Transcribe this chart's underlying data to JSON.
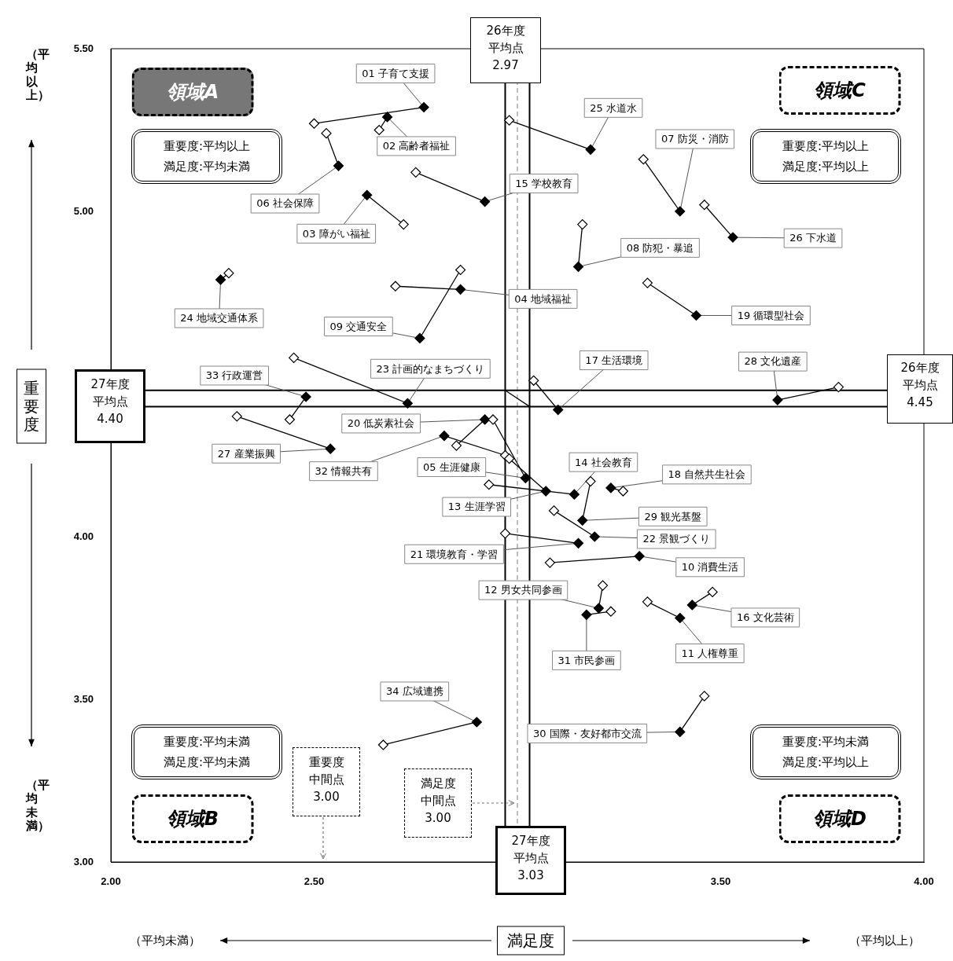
{
  "chart_data": {
    "type": "line",
    "xlabel": "満足度",
    "ylabel": "重要度",
    "marker": "diamond",
    "xlim": [
      2,
      4
    ],
    "ylim": [
      3,
      5.5
    ],
    "xticks": [
      {
        "value": 2,
        "label": "2.00"
      },
      {
        "value": 2.5,
        "label": "2.50"
      },
      {
        "value": 3.5,
        "label": "3.50"
      },
      {
        "value": 4,
        "label": "4.00"
      }
    ],
    "yticks": [
      {
        "value": 3,
        "label": "3.00"
      },
      {
        "value": 3.5,
        "label": "3.50"
      },
      {
        "value": 4,
        "label": "4.00"
      },
      {
        "value": 5,
        "label": "5.00"
      },
      {
        "value": 5.5,
        "label": "5.50"
      }
    ],
    "series": [
      {
        "color": "#000000",
        "x": [
          2.5,
          2.77
        ],
        "values": [
          5.27,
          5.32
        ]
      },
      {
        "color": "#000000",
        "x": [
          2.66,
          2.68
        ],
        "values": [
          5.25,
          5.29
        ]
      },
      {
        "color": "#000000",
        "x": [
          2.72,
          2.63
        ],
        "values": [
          4.96,
          5.05
        ]
      },
      {
        "color": "#000000",
        "x": [
          2.7,
          2.86
        ],
        "values": [
          4.77,
          4.76
        ]
      },
      {
        "color": "#000000",
        "x": [
          2.94,
          3.02
        ],
        "values": [
          4.36,
          4.18
        ]
      },
      {
        "color": "#000000",
        "x": [
          2.53,
          2.56
        ],
        "values": [
          5.24,
          5.14
        ]
      },
      {
        "color": "#000000",
        "x": [
          3.31,
          3.4
        ],
        "values": [
          5.16,
          5.0
        ]
      },
      {
        "color": "#000000",
        "x": [
          3.16,
          3.15
        ],
        "values": [
          4.96,
          4.83
        ]
      },
      {
        "color": "#000000",
        "x": [
          2.86,
          2.76
        ],
        "values": [
          4.82,
          4.61
        ]
      },
      {
        "color": "#000000",
        "x": [
          3.08,
          3.3
        ],
        "values": [
          3.92,
          3.94
        ]
      },
      {
        "color": "#000000",
        "x": [
          3.32,
          3.4
        ],
        "values": [
          3.8,
          3.75
        ]
      },
      {
        "color": "#000000",
        "x": [
          3.21,
          3.2
        ],
        "values": [
          3.85,
          3.78
        ]
      },
      {
        "color": "#000000",
        "x": [
          2.98,
          3.07
        ],
        "values": [
          4.24,
          4.14
        ]
      },
      {
        "color": "#000000",
        "x": [
          2.93,
          3.14
        ],
        "values": [
          4.16,
          4.13
        ]
      },
      {
        "color": "#000000",
        "x": [
          2.75,
          2.92
        ],
        "values": [
          5.12,
          5.03
        ]
      },
      {
        "color": "#000000",
        "x": [
          3.48,
          3.43
        ],
        "values": [
          3.83,
          3.79
        ]
      },
      {
        "color": "#000000",
        "x": [
          3.04,
          3.1
        ],
        "values": [
          4.48,
          4.39
        ]
      },
      {
        "color": "#000000",
        "x": [
          3.26,
          3.23
        ],
        "values": [
          4.14,
          4.15
        ]
      },
      {
        "color": "#000000",
        "x": [
          3.32,
          3.44
        ],
        "values": [
          4.78,
          4.68
        ]
      },
      {
        "color": "#000000",
        "x": [
          2.85,
          2.92
        ],
        "values": [
          4.28,
          4.36
        ]
      },
      {
        "color": "#000000",
        "x": [
          2.97,
          3.15
        ],
        "values": [
          4.01,
          3.98
        ]
      },
      {
        "color": "#000000",
        "x": [
          3.09,
          3.19
        ],
        "values": [
          4.08,
          4.0
        ]
      },
      {
        "color": "#000000",
        "x": [
          2.45,
          2.73
        ],
        "values": [
          4.55,
          4.41
        ]
      },
      {
        "color": "#000000",
        "x": [
          2.29,
          2.27
        ],
        "values": [
          4.81,
          4.79
        ]
      },
      {
        "color": "#000000",
        "x": [
          2.98,
          3.18
        ],
        "values": [
          5.28,
          5.19
        ]
      },
      {
        "color": "#000000",
        "x": [
          3.46,
          3.53
        ],
        "values": [
          5.02,
          4.92
        ]
      },
      {
        "color": "#000000",
        "x": [
          2.31,
          2.54
        ],
        "values": [
          4.37,
          4.27
        ]
      },
      {
        "color": "#000000",
        "x": [
          3.79,
          3.64
        ],
        "values": [
          4.46,
          4.42
        ]
      },
      {
        "color": "#000000",
        "x": [
          3.18,
          3.16
        ],
        "values": [
          4.17,
          4.05
        ]
      },
      {
        "color": "#000000",
        "x": [
          3.46,
          3.4
        ],
        "values": [
          3.51,
          3.4
        ]
      },
      {
        "color": "#000000",
        "x": [
          3.23,
          3.17
        ],
        "values": [
          3.77,
          3.76
        ]
      },
      {
        "color": "#000000",
        "x": [
          2.97,
          2.82
        ],
        "values": [
          4.25,
          4.31
        ]
      },
      {
        "color": "#000000",
        "x": [
          2.44,
          2.48
        ],
        "values": [
          4.36,
          4.43
        ]
      },
      {
        "color": "#000000",
        "x": [
          2.67,
          2.9
        ],
        "values": [
          3.36,
          3.43
        ]
      },
      {
        "color": "#000000",
        "x": [
          2.97,
          3.03
        ],
        "values": [
          4.45,
          4.4
        ],
        "marker": "none"
      }
    ],
    "ref_lines": [
      {
        "axis": "x",
        "value": 2.97,
        "label": "26年度平均点2.97",
        "line_style": "solid",
        "color": "#000000"
      },
      {
        "axis": "x",
        "value": 3.03,
        "label": "27年度平均点3.03",
        "line_style": "solid",
        "color": "#000000"
      },
      {
        "axis": "x",
        "value": 3.0,
        "line_style": "dashed",
        "color": "#aaaaaa"
      },
      {
        "axis": "y",
        "value": 4.45,
        "label": "26年度平均点4.45",
        "line_style": "solid",
        "color": "#000000"
      },
      {
        "axis": "y",
        "value": 4.4,
        "label": "27年度平均点4.40",
        "line_style": "solid",
        "color": "#000000"
      }
    ],
    "annotations": [
      {
        "text": "01 子育て支援",
        "x": 2.77,
        "y": 5.32
      },
      {
        "text": "02 高齢者福祉",
        "x": 2.68,
        "y": 5.29
      },
      {
        "text": "03 障がい福祉",
        "x": 2.63,
        "y": 5.05
      },
      {
        "text": "04 地域福祉",
        "x": 2.86,
        "y": 4.76
      },
      {
        "text": "05 生涯健康",
        "x": 3.02,
        "y": 4.18
      },
      {
        "text": "06 社会保障",
        "x": 2.56,
        "y": 5.14
      },
      {
        "text": "07 防災・消防",
        "x": 3.4,
        "y": 5.0
      },
      {
        "text": "08 防犯・暴追",
        "x": 3.15,
        "y": 4.83
      },
      {
        "text": "09 交通安全",
        "x": 2.76,
        "y": 4.61
      },
      {
        "text": "10 消費生活",
        "x": 3.3,
        "y": 3.94
      },
      {
        "text": "11 人権尊重",
        "x": 3.4,
        "y": 3.75
      },
      {
        "text": "12 男女共同参画",
        "x": 3.2,
        "y": 3.78
      },
      {
        "text": "13 生涯学習",
        "x": 3.07,
        "y": 4.14
      },
      {
        "text": "14 社会教育",
        "x": 3.14,
        "y": 4.13
      },
      {
        "text": "15 学校教育",
        "x": 2.92,
        "y": 5.03
      },
      {
        "text": "16 文化芸術",
        "x": 3.43,
        "y": 3.79
      },
      {
        "text": "17 生活環境",
        "x": 3.1,
        "y": 4.39
      },
      {
        "text": "18 自然共生社会",
        "x": 3.23,
        "y": 4.15
      },
      {
        "text": "19 循環型社会",
        "x": 3.44,
        "y": 4.68
      },
      {
        "text": "20 低炭素社会",
        "x": 2.92,
        "y": 4.36
      },
      {
        "text": "21 環境教育・学習",
        "x": 3.15,
        "y": 3.98
      },
      {
        "text": "22 景観づくり",
        "x": 3.19,
        "y": 4.0
      },
      {
        "text": "23 計画的なまちづくり",
        "x": 2.73,
        "y": 4.41
      },
      {
        "text": "24 地域交通体系",
        "x": 2.27,
        "y": 4.79
      },
      {
        "text": "25 水道水",
        "x": 3.18,
        "y": 5.19
      },
      {
        "text": "26 下水道",
        "x": 3.53,
        "y": 4.92
      },
      {
        "text": "27 産業振興",
        "x": 2.54,
        "y": 4.27
      },
      {
        "text": "28 文化遺産",
        "x": 3.64,
        "y": 4.42
      },
      {
        "text": "29 観光基盤",
        "x": 3.16,
        "y": 4.05
      },
      {
        "text": "30 国際・友好都市交流",
        "x": 3.4,
        "y": 3.4
      },
      {
        "text": "31 市民参画",
        "x": 3.17,
        "y": 3.76
      },
      {
        "text": "32 情報共有",
        "x": 2.82,
        "y": 4.31
      },
      {
        "text": "33 行政運営",
        "x": 2.48,
        "y": 4.43
      },
      {
        "text": "34 広域連携",
        "x": 2.9,
        "y": 3.43
      },
      "領域A",
      "重要度:平均以上",
      "満足度:平均未満",
      "領域C",
      "重要度:平均以上",
      "満足度:平均以上",
      "重要度:平均未満",
      "満足度:平均未満",
      "領域B",
      "重要度:平均未満",
      "満足度:平均以上",
      "領域D",
      "（平均以上）",
      "（平均未満）",
      "（平均未満）",
      "（平均以上）",
      "重要度中間点3.00",
      "満足度中間点3.00"
    ]
  }
}
